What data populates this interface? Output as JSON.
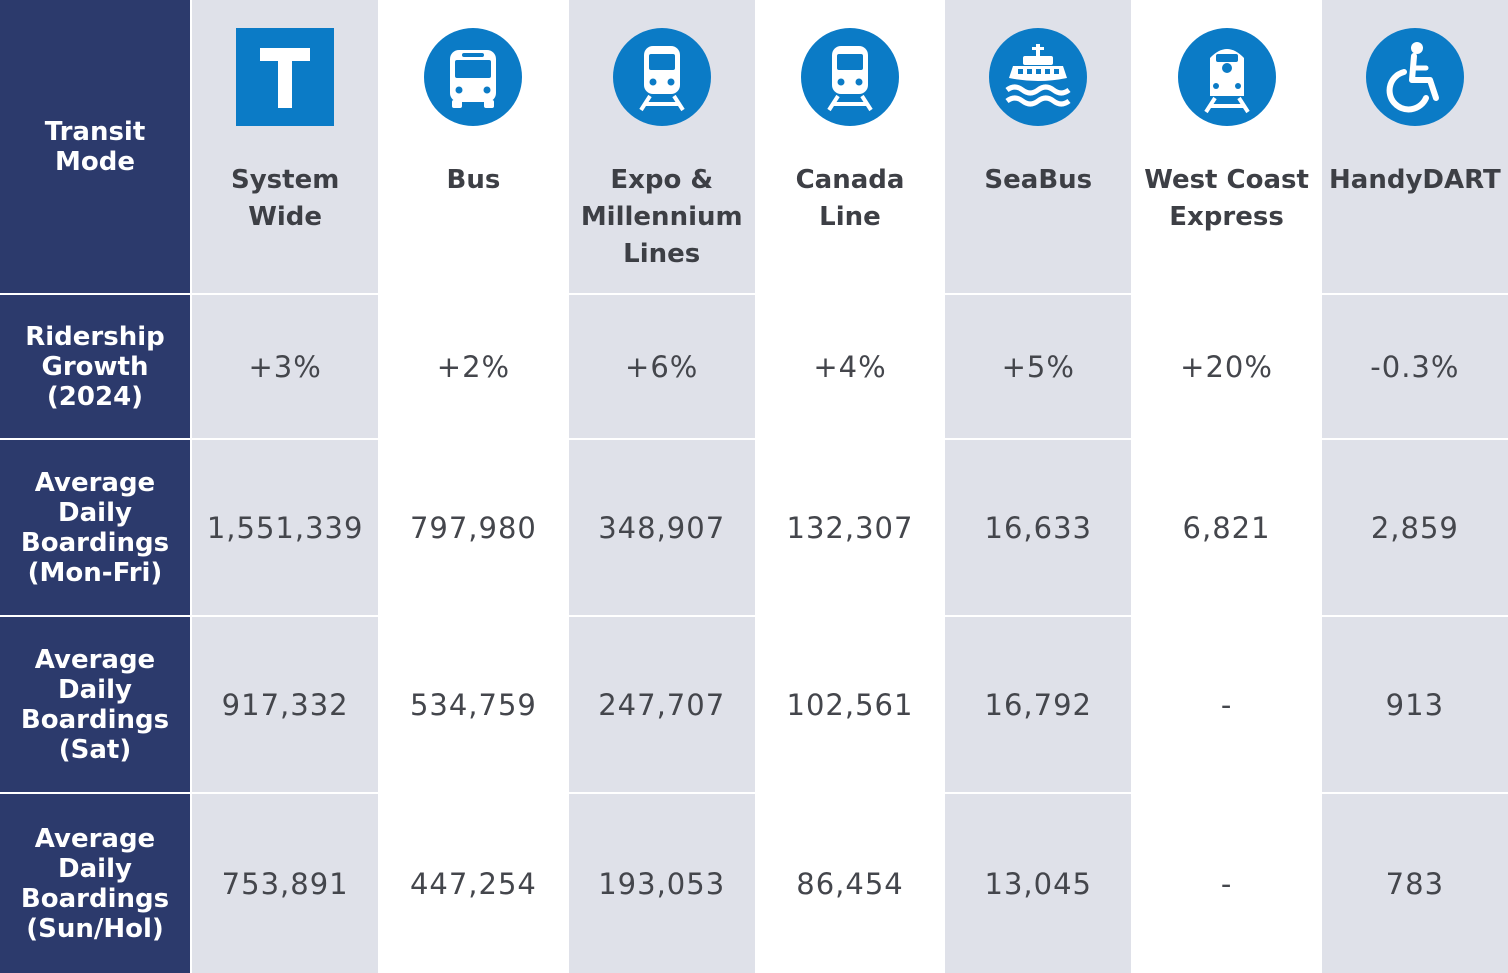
{
  "colors": {
    "header_bg": "#2c3a6c",
    "shade": "#dfe1e9",
    "icon_blue": "#0b7bc6",
    "text": "#44464c"
  },
  "corner_label": "Transit\nMode",
  "modes": [
    {
      "name": "System\nWide",
      "icon": "transit-t-icon"
    },
    {
      "name": "Bus",
      "icon": "bus-icon"
    },
    {
      "name": "Expo &\nMillennium\nLines",
      "icon": "skytrain-icon"
    },
    {
      "name": "Canada\nLine",
      "icon": "skytrain-icon"
    },
    {
      "name": "SeaBus",
      "icon": "ferry-icon"
    },
    {
      "name": "West Coast\nExpress",
      "icon": "commuter-train-icon"
    },
    {
      "name": "HandyDART",
      "icon": "wheelchair-icon"
    }
  ],
  "rows": [
    {
      "label": "Ridership\nGrowth\n(2024)",
      "values": [
        "+3%",
        "+2%",
        "+6%",
        "+4%",
        "+5%",
        "+20%",
        "-0.3%"
      ]
    },
    {
      "label": "Average\nDaily\nBoardings\n(Mon-Fri)",
      "values": [
        "1,551,339",
        "797,980",
        "348,907",
        "132,307",
        "16,633",
        "6,821",
        "2,859"
      ]
    },
    {
      "label": "Average\nDaily\nBoardings\n(Sat)",
      "values": [
        "917,332",
        "534,759",
        "247,707",
        "102,561",
        "16,792",
        "-",
        "913"
      ]
    },
    {
      "label": "Average\nDaily\nBoardings\n(Sun/Hol)",
      "values": [
        "753,891",
        "447,254",
        "193,053",
        "86,454",
        "13,045",
        "-",
        "783"
      ]
    }
  ]
}
